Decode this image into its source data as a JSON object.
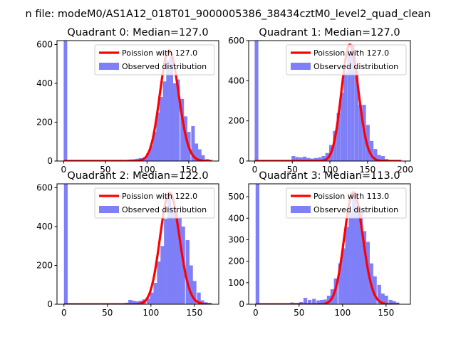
{
  "figure": {
    "suptitle": "n file: modeM0/AS1A12_018T01_9000005386_38434cztM0_level2_quad_clean"
  },
  "colors": {
    "poisson": "#ff0000",
    "observed": "#7f7ff8",
    "axis": "#000000",
    "background": "#ffffff"
  },
  "chart_data": [
    {
      "type": "histogram",
      "title": "Quadrant 0: Median=127.0",
      "xlim": [
        -8,
        186
      ],
      "ylim": [
        0,
        620
      ],
      "xticks": [
        0,
        50,
        100,
        150
      ],
      "yticks": [
        0,
        200,
        400,
        600
      ],
      "legend": {
        "placement": "upper right",
        "entries": [
          "Poission with 127.0",
          "Observed distribution"
        ]
      },
      "series": [
        {
          "name": "Observed distribution",
          "kind": "bars",
          "bin_width": 4.3,
          "bars": [
            [
              0,
              620
            ],
            [
              60,
              5
            ],
            [
              65,
              6
            ],
            [
              70,
              5
            ],
            [
              74,
              6
            ],
            [
              78,
              8
            ],
            [
              82,
              9
            ],
            [
              86,
              12
            ],
            [
              90,
              15
            ],
            [
              95,
              20
            ],
            [
              99,
              40
            ],
            [
              103,
              80
            ],
            [
              107,
              150
            ],
            [
              111,
              250
            ],
            [
              115,
              330
            ],
            [
              119,
              410
            ],
            [
              123,
              520
            ],
            [
              127,
              540
            ],
            [
              131,
              400
            ],
            [
              135,
              420
            ],
            [
              140,
              320
            ],
            [
              144,
              230
            ],
            [
              148,
              150
            ],
            [
              153,
              180
            ],
            [
              157,
              90
            ],
            [
              161,
              60
            ],
            [
              165,
              30
            ],
            [
              170,
              10
            ]
          ]
        },
        {
          "name": "Poission with 127.0",
          "kind": "poisson",
          "mean": 127.0,
          "scale": 570,
          "x_range": [
            0,
            178
          ]
        }
      ]
    },
    {
      "type": "histogram",
      "title": "Quadrant 1: Median=127.0",
      "xlim": [
        -8,
        207
      ],
      "ylim": [
        0,
        600
      ],
      "xticks": [
        0,
        50,
        100,
        150,
        200
      ],
      "yticks": [
        0,
        200,
        400,
        600
      ],
      "legend": {
        "placement": "upper right",
        "entries": [
          "Poission with 127.0",
          "Observed distribution"
        ]
      },
      "series": [
        {
          "name": "Observed distribution",
          "kind": "bars",
          "bin_width": 4.9,
          "bars": [
            [
              0,
              600
            ],
            [
              44,
              5
            ],
            [
              49,
              25
            ],
            [
              54,
              20
            ],
            [
              59,
              18
            ],
            [
              64,
              22
            ],
            [
              69,
              15
            ],
            [
              74,
              12
            ],
            [
              79,
              15
            ],
            [
              84,
              18
            ],
            [
              89,
              25
            ],
            [
              94,
              40
            ],
            [
              99,
              80
            ],
            [
              104,
              150
            ],
            [
              109,
              240
            ],
            [
              114,
              340
            ],
            [
              118,
              440
            ],
            [
              123,
              550
            ],
            [
              128,
              580
            ],
            [
              133,
              450
            ],
            [
              138,
              280
            ],
            [
              143,
              280
            ],
            [
              148,
              180
            ],
            [
              153,
              100
            ],
            [
              158,
              60
            ],
            [
              163,
              30
            ],
            [
              168,
              25
            ],
            [
              173,
              10
            ]
          ]
        },
        {
          "name": "Poission with 127.0",
          "kind": "poisson",
          "mean": 127.0,
          "scale": 580,
          "x_range": [
            0,
            195
          ]
        }
      ]
    },
    {
      "type": "histogram",
      "title": "Quadrant 2: Median=122.0",
      "xlim": [
        -8,
        178
      ],
      "ylim": [
        0,
        620
      ],
      "xticks": [
        0,
        50,
        100,
        150
      ],
      "yticks": [
        0,
        200,
        400,
        600
      ],
      "legend": {
        "placement": "upper right",
        "entries": [
          "Poission with 122.0",
          "Observed distribution"
        ]
      },
      "series": [
        {
          "name": "Observed distribution",
          "kind": "bars",
          "bin_width": 4.3,
          "bars": [
            [
              0,
              620
            ],
            [
              60,
              5
            ],
            [
              65,
              5
            ],
            [
              70,
              8
            ],
            [
              74,
              22
            ],
            [
              78,
              18
            ],
            [
              82,
              15
            ],
            [
              86,
              18
            ],
            [
              90,
              25
            ],
            [
              95,
              30
            ],
            [
              99,
              60
            ],
            [
              103,
              110
            ],
            [
              107,
              220
            ],
            [
              111,
              300
            ],
            [
              115,
              440
            ],
            [
              119,
              580
            ],
            [
              123,
              500
            ],
            [
              127,
              460
            ],
            [
              131,
              450
            ],
            [
              135,
              400
            ],
            [
              140,
              330
            ],
            [
              144,
              200
            ],
            [
              148,
              120
            ],
            [
              153,
              60
            ],
            [
              157,
              20
            ],
            [
              161,
              10
            ],
            [
              165,
              6
            ]
          ]
        },
        {
          "name": "Poission with 122.0",
          "kind": "poisson",
          "mean": 122.0,
          "scale": 575,
          "x_range": [
            0,
            170
          ]
        }
      ]
    },
    {
      "type": "histogram",
      "title": "Quadrant 3: Median=113.0",
      "xlim": [
        -8,
        178
      ],
      "ylim": [
        0,
        560
      ],
      "xticks": [
        0,
        50,
        100,
        150
      ],
      "yticks": [
        0,
        100,
        200,
        300,
        400,
        500
      ],
      "legend": {
        "placement": "upper right",
        "entries": [
          "Poission with 113.0",
          "Observed distribution"
        ]
      },
      "series": [
        {
          "name": "Observed distribution",
          "kind": "bars",
          "bin_width": 4.3,
          "bars": [
            [
              0,
              560
            ],
            [
              40,
              8
            ],
            [
              45,
              6
            ],
            [
              50,
              10
            ],
            [
              55,
              30
            ],
            [
              60,
              20
            ],
            [
              65,
              25
            ],
            [
              70,
              18
            ],
            [
              74,
              20
            ],
            [
              78,
              22
            ],
            [
              82,
              40
            ],
            [
              86,
              70
            ],
            [
              90,
              120
            ],
            [
              95,
              190
            ],
            [
              99,
              260
            ],
            [
              103,
              360
            ],
            [
              107,
              430
            ],
            [
              111,
              520
            ],
            [
              115,
              460
            ],
            [
              119,
              430
            ],
            [
              123,
              340
            ],
            [
              127,
              290
            ],
            [
              131,
              190
            ],
            [
              135,
              130
            ],
            [
              140,
              90
            ],
            [
              144,
              50
            ],
            [
              148,
              40
            ],
            [
              153,
              20
            ],
            [
              157,
              15
            ],
            [
              161,
              8
            ]
          ]
        },
        {
          "name": "Poission with 113.0",
          "kind": "poisson",
          "mean": 113.0,
          "scale": 520,
          "x_range": [
            0,
            165
          ]
        }
      ]
    }
  ]
}
